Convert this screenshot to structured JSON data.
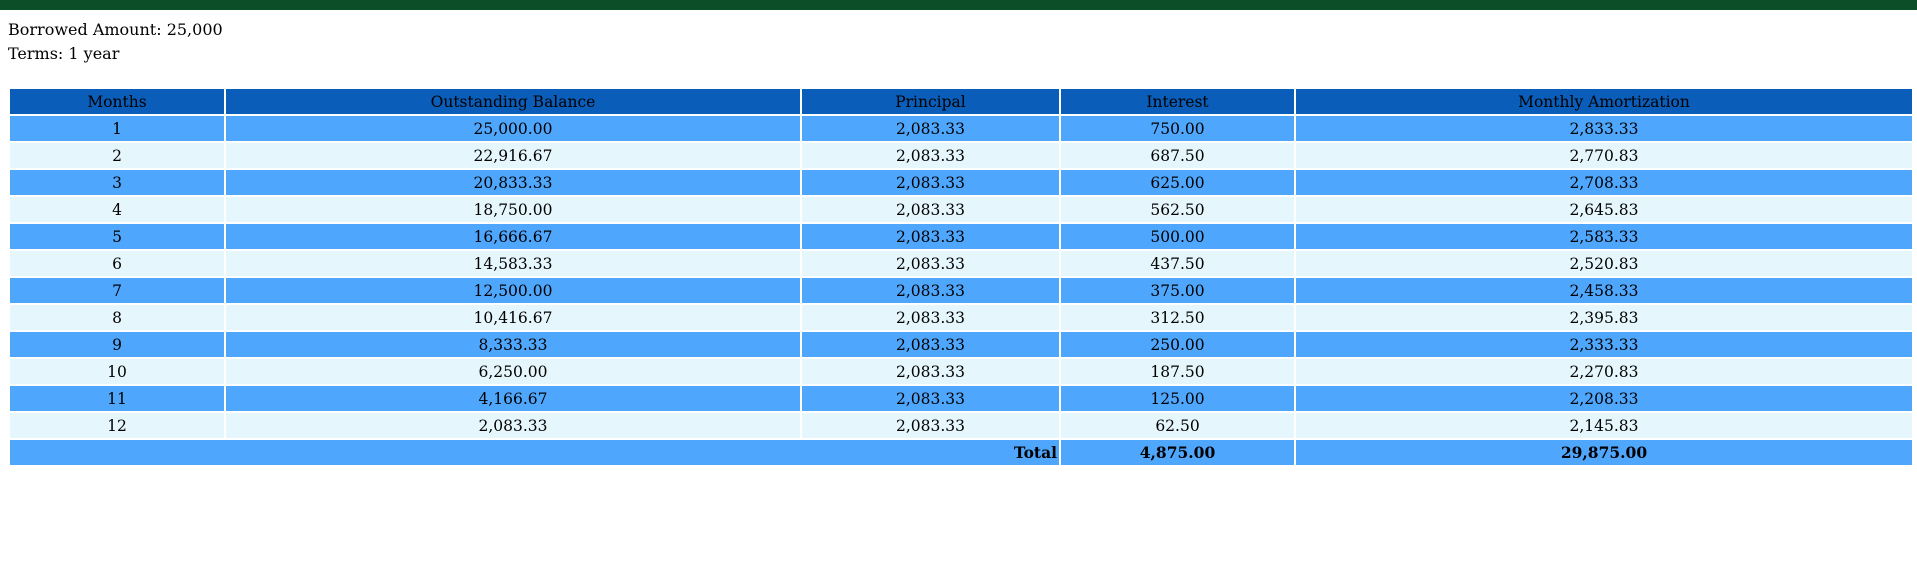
{
  "loan": {
    "borrowed_label": "Borrowed Amount: 25,000",
    "terms_label": "Terms: 1 year"
  },
  "colors": {
    "top_bar": "#0b4e27",
    "header_bg": "#0a5db8",
    "row_odd": "#4ea6fd",
    "row_even": "#e5f6fd"
  },
  "table": {
    "headers": [
      "Months",
      "Outstanding Balance",
      "Principal",
      "Interest",
      "Monthly Amortization"
    ],
    "rows": [
      [
        "1",
        "25,000.00",
        "2,083.33",
        "750.00",
        "2,833.33"
      ],
      [
        "2",
        "22,916.67",
        "2,083.33",
        "687.50",
        "2,770.83"
      ],
      [
        "3",
        "20,833.33",
        "2,083.33",
        "625.00",
        "2,708.33"
      ],
      [
        "4",
        "18,750.00",
        "2,083.33",
        "562.50",
        "2,645.83"
      ],
      [
        "5",
        "16,666.67",
        "2,083.33",
        "500.00",
        "2,583.33"
      ],
      [
        "6",
        "14,583.33",
        "2,083.33",
        "437.50",
        "2,520.83"
      ],
      [
        "7",
        "12,500.00",
        "2,083.33",
        "375.00",
        "2,458.33"
      ],
      [
        "8",
        "10,416.67",
        "2,083.33",
        "312.50",
        "2,395.83"
      ],
      [
        "9",
        "8,333.33",
        "2,083.33",
        "250.00",
        "2,333.33"
      ],
      [
        "10",
        "6,250.00",
        "2,083.33",
        "187.50",
        "2,270.83"
      ],
      [
        "11",
        "4,166.67",
        "2,083.33",
        "125.00",
        "2,208.33"
      ],
      [
        "12",
        "2,083.33",
        "2,083.33",
        "62.50",
        "2,145.83"
      ]
    ],
    "total": {
      "label": "Total",
      "interest": "4,875.00",
      "amortization": "29,875.00"
    }
  }
}
